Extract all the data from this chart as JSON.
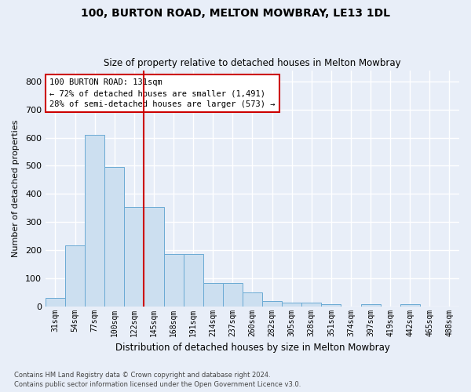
{
  "title1": "100, BURTON ROAD, MELTON MOWBRAY, LE13 1DL",
  "title2": "Size of property relative to detached houses in Melton Mowbray",
  "xlabel": "Distribution of detached houses by size in Melton Mowbray",
  "ylabel": "Number of detached properties",
  "categories": [
    "31sqm",
    "54sqm",
    "77sqm",
    "100sqm",
    "122sqm",
    "145sqm",
    "168sqm",
    "191sqm",
    "214sqm",
    "237sqm",
    "260sqm",
    "282sqm",
    "305sqm",
    "328sqm",
    "351sqm",
    "374sqm",
    "397sqm",
    "419sqm",
    "442sqm",
    "465sqm",
    "488sqm"
  ],
  "values": [
    30,
    218,
    610,
    495,
    352,
    352,
    185,
    185,
    83,
    83,
    50,
    18,
    13,
    13,
    7,
    0,
    7,
    0,
    7,
    0,
    0
  ],
  "bar_color": "#ccdff0",
  "bar_edge_color": "#6aaad4",
  "vline_color": "#cc0000",
  "annotation_text": "100 BURTON ROAD: 131sqm\n← 72% of detached houses are smaller (1,491)\n28% of semi-detached houses are larger (573) →",
  "annotation_box_color": "#ffffff",
  "annotation_box_edge": "#cc0000",
  "ylim": [
    0,
    840
  ],
  "yticks": [
    0,
    100,
    200,
    300,
    400,
    500,
    600,
    700,
    800
  ],
  "footer1": "Contains HM Land Registry data © Crown copyright and database right 2024.",
  "footer2": "Contains public sector information licensed under the Open Government Licence v3.0.",
  "bg_color": "#e8eef8",
  "grid_color": "#ffffff"
}
